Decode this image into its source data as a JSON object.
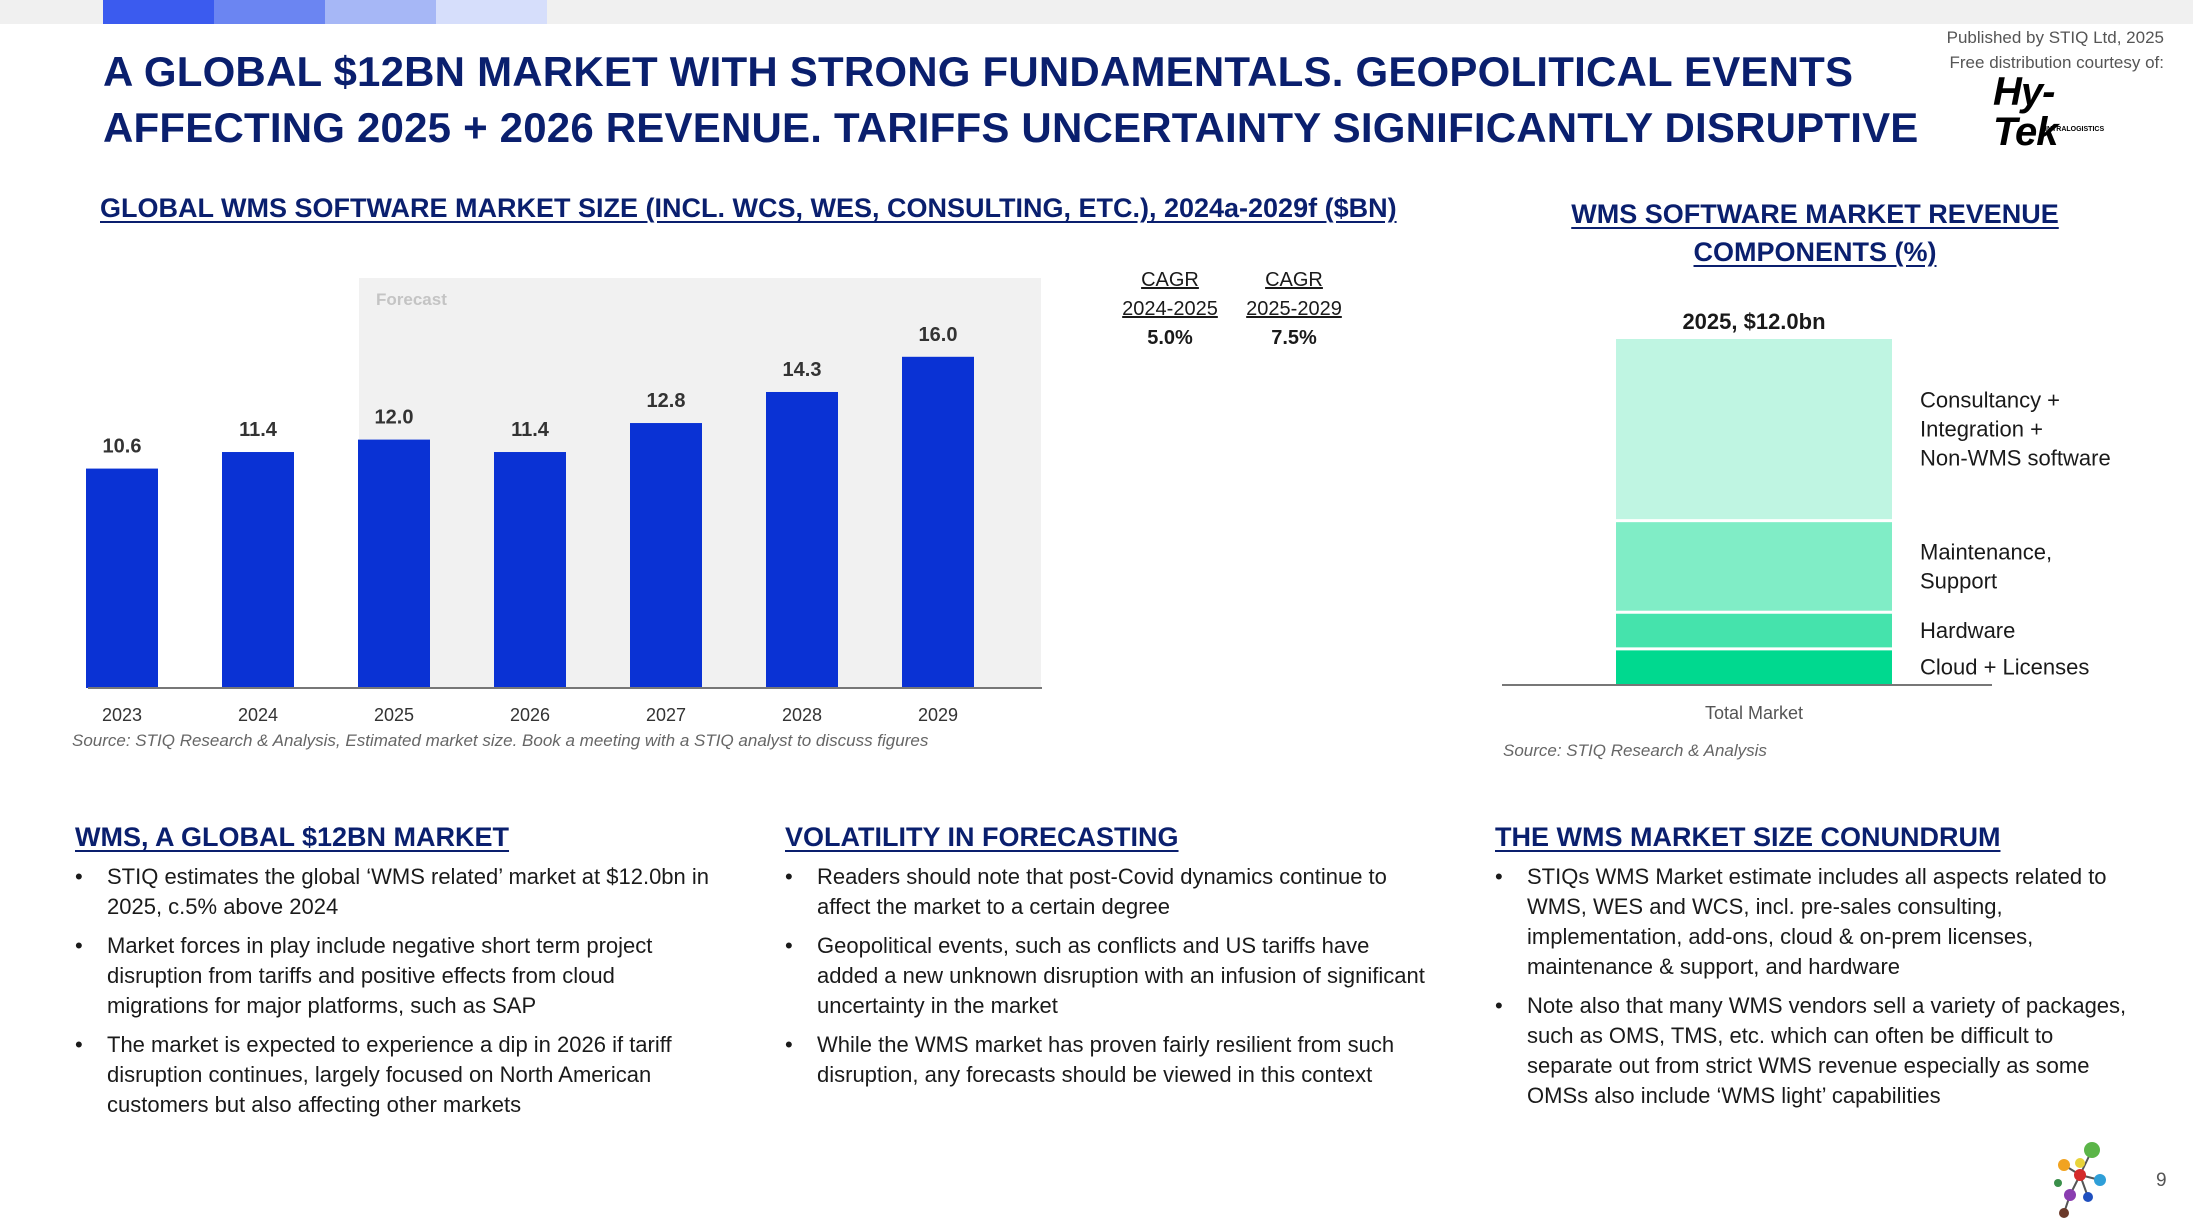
{
  "header": {
    "title_line1": "A GLOBAL $12BN MARKET WITH STRONG FUNDAMENTALS. GEOPOLITICAL EVENTS",
    "title_line2": "AFFECTING 2025 + 2026 REVENUE. TARIFFS UNCERTAINTY SIGNIFICANTLY DISRUPTIVE",
    "published": "Published by STIQ Ltd, 2025",
    "courtesy": "Free distribution courtesy of:",
    "logo_text": "Hy-Tek",
    "logo_sub": "INTRALOGISTICS",
    "topbar_colors": [
      "#3b5bef",
      "#6b85f2",
      "#a6b7f6",
      "#d6defb"
    ]
  },
  "left_chart": {
    "heading": "GLOBAL WMS SOFTWARE MARKET SIZE (INCL. WCS, WES, CONSULTING, ETC.), 2024a-2029f ($BN)",
    "source": "Source: STIQ Research & Analysis, Estimated market size. Book a meeting with a STIQ analyst to discuss figures"
  },
  "cagr": [
    {
      "label_line1": "CAGR",
      "label_line2": "2024-2025",
      "value": "5.0%"
    },
    {
      "label_line1": "CAGR",
      "label_line2": "2025-2029",
      "value": "7.5%"
    }
  ],
  "right_chart": {
    "heading": "WMS SOFTWARE MARKET REVENUE COMPONENTS (%)",
    "source": "Source: STIQ Research & Analysis"
  },
  "chart_data": [
    {
      "type": "bar",
      "title": "GLOBAL WMS SOFTWARE MARKET SIZE (INCL. WCS, WES, CONSULTING, ETC.), 2024a-2029f ($BN)",
      "categories": [
        "2023",
        "2024",
        "2025",
        "2026",
        "2027",
        "2028",
        "2029"
      ],
      "values": [
        10.6,
        11.4,
        12.0,
        11.4,
        12.8,
        14.3,
        16.0
      ],
      "value_labels": [
        "10.6",
        "11.4",
        "12.0",
        "11.4",
        "12.8",
        "14.3",
        "16.0"
      ],
      "forecast_label": "Forecast",
      "forecast_from": "2025",
      "ylim": [
        0,
        18
      ],
      "xlabel": "",
      "ylabel": "",
      "color": "#0a32d4"
    },
    {
      "type": "bar",
      "subtype": "stacked",
      "title": "2025, $12.0bn",
      "categories": [
        "Total Market"
      ],
      "series": [
        {
          "name": "Cloud + Licenses",
          "value": 10,
          "color": "#00d98f"
        },
        {
          "name": "Hardware",
          "value": 10,
          "color": "#45e3ac"
        },
        {
          "name": "Maintenance, Support",
          "value": 25,
          "color": "#80edc6"
        },
        {
          "name": "Consultancy + Integration + Non-WMS software",
          "value": 50,
          "color": "#bff5e2"
        }
      ],
      "legend_lines": [
        [
          "Cloud + Licenses"
        ],
        [
          "Hardware"
        ],
        [
          "Maintenance,",
          "Support"
        ],
        [
          "Consultancy +",
          "Integration +",
          "Non-WMS software"
        ]
      ]
    }
  ],
  "columns": [
    {
      "heading": "WMS, A GLOBAL $12BN MARKET",
      "bullets": [
        "STIQ estimates the global ‘WMS related’ market at $12.0bn in 2025, c.5% above 2024",
        "Market forces in play include negative short term project disruption from tariffs and positive effects from cloud migrations for major platforms, such as SAP",
        "The market is expected to experience a dip in 2026 if tariff disruption continues, largely focused on North American customers but also affecting other markets"
      ]
    },
    {
      "heading": "VOLATILITY IN FORECASTING",
      "bullets": [
        "Readers should note that post-Covid dynamics continue to affect the market to a certain degree",
        "Geopolitical events, such as conflicts and US tariffs have added a new unknown disruption with an infusion of significant uncertainty in the market",
        "While the WMS market has proven fairly resilient from such disruption, any forecasts should be viewed in this context"
      ]
    },
    {
      "heading": "THE WMS MARKET SIZE CONUNDRUM",
      "bullets": [
        "STIQs WMS Market estimate includes all aspects related to WMS, WES and WCS, incl. pre-sales consulting, implementation, add-ons, cloud & on-prem licenses, maintenance & support, and hardware",
        "Note also that many WMS vendors sell a variety of packages, such as OMS, TMS, etc. which can often be difficult to separate out from strict WMS revenue especially as some OMSs also include ‘WMS light’ capabilities"
      ]
    }
  ],
  "footer": {
    "page_number": "9"
  }
}
